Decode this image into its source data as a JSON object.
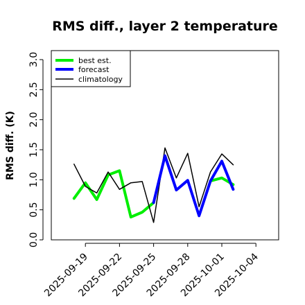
{
  "chart_data": {
    "type": "line",
    "title": "RMS diff., layer 2 temperature",
    "ylabel": "RMS diff. (K)",
    "xlabel": "",
    "ylim": [
      0.0,
      3.15
    ],
    "yticks": [
      0.0,
      0.5,
      1.0,
      1.5,
      2.0,
      2.5,
      3.0
    ],
    "ytick_labels": [
      "0.0",
      "0.5",
      "1.0",
      "1.5",
      "2.0",
      "2.5",
      "3.0"
    ],
    "xlim": [
      "2025-09-16",
      "2025-10-06"
    ],
    "xticks": [
      "2025-09-19",
      "2025-09-22",
      "2025-09-25",
      "2025-09-28",
      "2025-10-01",
      "2025-10-04"
    ],
    "xtick_colors": [
      "#000000",
      "#000000",
      "#228B22",
      "#000000",
      "#000000",
      "#000000"
    ],
    "legend": {
      "placement": "top-left",
      "entries": [
        "best est.",
        "forecast",
        "climatology"
      ]
    },
    "series": [
      {
        "name": "best est.",
        "color": "#00ee00",
        "x": [
          "2025-09-18",
          "2025-09-19",
          "2025-09-20",
          "2025-09-21",
          "2025-09-22",
          "2025-09-23",
          "2025-09-24",
          "2025-09-25"
        ],
        "values": [
          0.69,
          0.95,
          0.67,
          1.08,
          1.15,
          0.38,
          0.46,
          0.62
        ]
      },
      {
        "name": "forecast",
        "color": "#0000ff",
        "x": [
          "2025-09-25",
          "2025-09-26",
          "2025-09-27",
          "2025-09-28",
          "2025-09-29",
          "2025-09-30",
          "2025-10-01",
          "2025-10-02"
        ],
        "values": [
          0.62,
          1.4,
          0.83,
          0.99,
          0.4,
          0.98,
          1.31,
          0.84
        ]
      },
      {
        "name": "best est. (after forecast)",
        "color": "#00ee00",
        "x": [
          "2025-09-30",
          "2025-10-01",
          "2025-10-02"
        ],
        "values": [
          0.98,
          1.03,
          0.92
        ]
      },
      {
        "name": "climatology",
        "color": "#000000",
        "x": [
          "2025-09-18",
          "2025-09-19",
          "2025-09-20",
          "2025-09-21",
          "2025-09-22",
          "2025-09-23",
          "2025-09-24",
          "2025-09-25",
          "2025-09-26",
          "2025-09-27",
          "2025-09-28",
          "2025-09-29",
          "2025-09-30",
          "2025-10-01",
          "2025-10-02"
        ],
        "values": [
          1.26,
          0.89,
          0.78,
          1.13,
          0.84,
          0.95,
          0.97,
          0.29,
          1.53,
          1.03,
          1.44,
          0.55,
          1.13,
          1.43,
          1.25
        ]
      }
    ]
  }
}
